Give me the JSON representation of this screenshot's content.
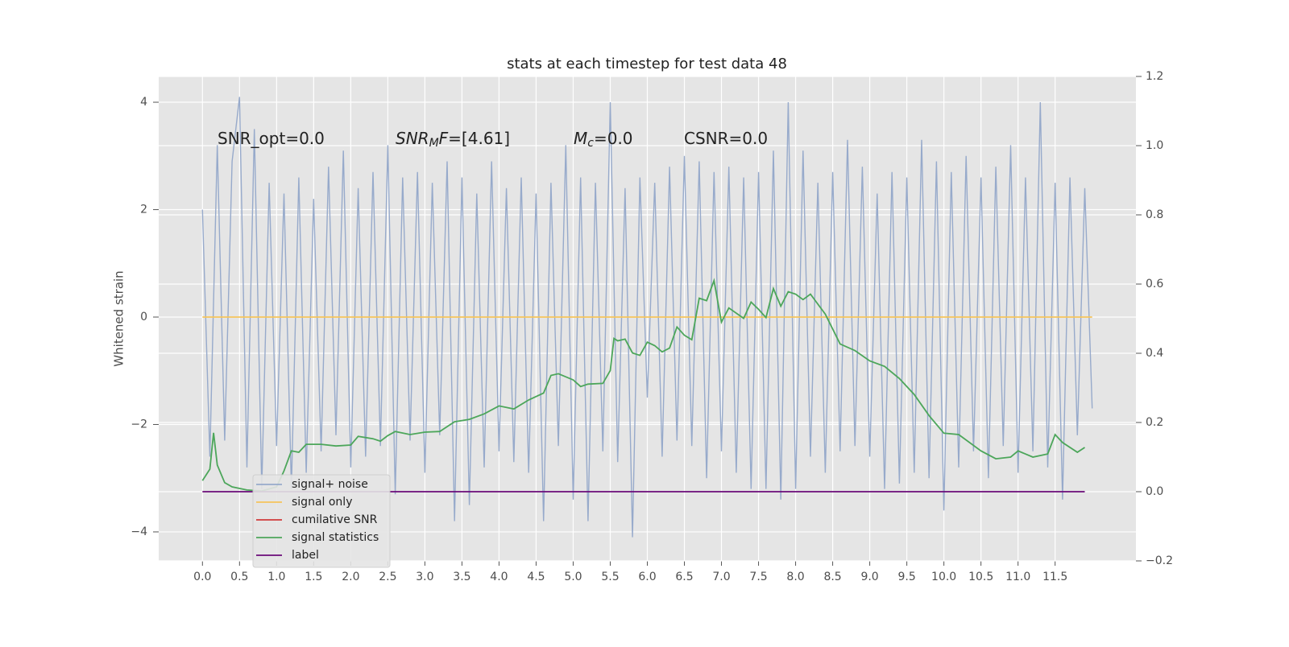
{
  "chart_data": {
    "type": "line",
    "title": "stats at each timestep for test data 48",
    "ylabel": "Whitened strain",
    "annotations": [
      {
        "parts": [
          {
            "text": "SNR_opt=0.0",
            "style": "normal"
          }
        ]
      },
      {
        "parts": [
          {
            "text": "SNR",
            "style": "italic"
          },
          {
            "text": "M",
            "style": "sub"
          },
          {
            "text": "F",
            "style": "italic"
          },
          {
            "text": "=[4.61]",
            "style": "normal"
          }
        ]
      },
      {
        "parts": [
          {
            "text": "M",
            "style": "italic"
          },
          {
            "text": "c",
            "style": "sub"
          },
          {
            "text": "=0.0",
            "style": "normal"
          }
        ]
      },
      {
        "parts": [
          {
            "text": "CSNR=0.0",
            "style": "normal"
          }
        ]
      }
    ],
    "xlim": [
      -0.59,
      12.59
    ],
    "ylim": [
      -4.54,
      4.48
    ],
    "y2lim": [
      -0.2,
      1.2
    ],
    "xticks": [
      {
        "value": 0,
        "label": "0.0"
      },
      {
        "value": 0.5,
        "label": "0.5"
      },
      {
        "value": 1,
        "label": "1.0"
      },
      {
        "value": 1.5,
        "label": "1.5"
      },
      {
        "value": 2,
        "label": "2.0"
      },
      {
        "value": 2.5,
        "label": "2.5"
      },
      {
        "value": 3,
        "label": "3.0"
      },
      {
        "value": 3.5,
        "label": "3.5"
      },
      {
        "value": 4,
        "label": "4.0"
      },
      {
        "value": 4.5,
        "label": "4.5"
      },
      {
        "value": 5,
        "label": "5.0"
      },
      {
        "value": 5.5,
        "label": "5.5"
      },
      {
        "value": 6,
        "label": "6.0"
      },
      {
        "value": 6.5,
        "label": "6.5"
      },
      {
        "value": 7,
        "label": "7.0"
      },
      {
        "value": 7.5,
        "label": "7.5"
      },
      {
        "value": 8,
        "label": "8.0"
      },
      {
        "value": 8.5,
        "label": "8.5"
      },
      {
        "value": 9,
        "label": "9.0"
      },
      {
        "value": 9.5,
        "label": "9.5"
      },
      {
        "value": 10,
        "label": "10.0"
      },
      {
        "value": 10.5,
        "label": "10.5"
      },
      {
        "value": 11,
        "label": "11.0"
      },
      {
        "value": 11.5,
        "label": "11.5"
      }
    ],
    "yticks": [
      {
        "value": -4,
        "label": "−4"
      },
      {
        "value": -2,
        "label": "−2"
      },
      0,
      2,
      4
    ],
    "y2ticks": [
      {
        "value": -0.2,
        "label": "−0.2"
      },
      {
        "value": 0,
        "label": "0.0"
      },
      {
        "value": 0.2,
        "label": "0.2"
      },
      {
        "value": 0.4,
        "label": "0.4"
      },
      {
        "value": 0.6,
        "label": "0.6"
      },
      {
        "value": 0.8,
        "label": "0.8"
      },
      {
        "value": 1.0,
        "label": "1.0"
      },
      {
        "value": 1.2,
        "label": "1.2"
      }
    ],
    "grid": true,
    "legend": "lower left",
    "series": [
      {
        "name": "signal+ noise",
        "color": "#97aacb",
        "axis": "y",
        "x": [
          0,
          0.1,
          0.2,
          0.3,
          0.4,
          0.5,
          0.6,
          0.7,
          0.8,
          0.9,
          1,
          1.1,
          1.2,
          1.3,
          1.4,
          1.5,
          1.6,
          1.7,
          1.8,
          1.9,
          2,
          2.1,
          2.2,
          2.3,
          2.4,
          2.5,
          2.6,
          2.7,
          2.8,
          2.9,
          3,
          3.1,
          3.2,
          3.3,
          3.4,
          3.5,
          3.6,
          3.7,
          3.8,
          3.9,
          4,
          4.1,
          4.2,
          4.3,
          4.4,
          4.5,
          4.6,
          4.7,
          4.8,
          4.9,
          5,
          5.1,
          5.2,
          5.3,
          5.4,
          5.5,
          5.6,
          5.7,
          5.8,
          5.9,
          6,
          6.1,
          6.2,
          6.3,
          6.4,
          6.5,
          6.6,
          6.7,
          6.8,
          6.9,
          7,
          7.1,
          7.2,
          7.3,
          7.4,
          7.5,
          7.6,
          7.7,
          7.8,
          7.9,
          8,
          8.1,
          8.2,
          8.3,
          8.4,
          8.5,
          8.6,
          8.7,
          8.8,
          8.9,
          9,
          9.1,
          9.2,
          9.3,
          9.4,
          9.5,
          9.6,
          9.7,
          9.8,
          9.9,
          10,
          10.1,
          10.2,
          10.3,
          10.4,
          10.5,
          10.6,
          10.7,
          10.8,
          10.9,
          11,
          11.1,
          11.2,
          11.3,
          11.4,
          11.5,
          11.6,
          11.7,
          11.8,
          11.9,
          12
        ],
        "values": [
          2.0,
          -2.6,
          3.2,
          -2.3,
          2.9,
          4.1,
          -2.8,
          3.5,
          -3.2,
          2.5,
          -2.4,
          2.3,
          -3.2,
          2.6,
          -2.9,
          2.2,
          -2.5,
          2.8,
          -2.2,
          3.1,
          -2.8,
          2.4,
          -2.6,
          2.7,
          -2.4,
          3.2,
          -3.3,
          2.6,
          -2.3,
          2.7,
          -2.9,
          2.5,
          -2.2,
          2.9,
          -3.8,
          2.6,
          -3.5,
          2.3,
          -2.8,
          2.9,
          -2.5,
          2.4,
          -2.7,
          2.6,
          -2.9,
          2.3,
          -3.8,
          2.5,
          -2.4,
          3.2,
          -3.4,
          2.6,
          -3.8,
          2.5,
          -2.5,
          4.0,
          -2.7,
          2.4,
          -4.1,
          2.6,
          -1.5,
          2.5,
          -2.6,
          2.8,
          -2.3,
          3.0,
          -2.4,
          2.9,
          -3.0,
          2.7,
          -2.5,
          2.8,
          -2.9,
          2.6,
          -3.2,
          2.7,
          -3.2,
          3.1,
          -3.4,
          4.0,
          -3.2,
          3.1,
          -2.6,
          2.5,
          -2.9,
          2.7,
          -2.5,
          3.3,
          -2.4,
          2.8,
          -2.6,
          2.3,
          -3.2,
          2.7,
          -3.1,
          2.6,
          -2.9,
          3.3,
          -3.0,
          2.9,
          -3.6,
          2.7,
          -2.8,
          3.0,
          -2.5,
          2.6,
          -3.0,
          2.8,
          -2.4,
          3.2,
          -2.9,
          2.6,
          -2.5,
          4.0,
          -2.8,
          2.5,
          -3.4,
          2.6,
          -2.2,
          2.4,
          -1.7
        ]
      },
      {
        "name": "signal only",
        "color": "#f5c45a",
        "axis": "y",
        "x": [
          0,
          12
        ],
        "values": [
          0,
          0
        ]
      },
      {
        "name": "cumilative SNR",
        "color": "#d03a3a",
        "axis": "y2",
        "x": [],
        "values": []
      },
      {
        "name": "signal statistics",
        "color": "#4ca65a",
        "axis": "y2",
        "x": [
          0,
          0.1,
          0.15,
          0.2,
          0.3,
          0.4,
          0.6,
          0.8,
          1.0,
          1.1,
          1.2,
          1.3,
          1.4,
          1.6,
          1.8,
          2.0,
          2.1,
          2.3,
          2.4,
          2.5,
          2.6,
          2.8,
          3.0,
          3.2,
          3.4,
          3.6,
          3.8,
          4.0,
          4.2,
          4.4,
          4.6,
          4.7,
          4.8,
          5.0,
          5.1,
          5.2,
          5.4,
          5.5,
          5.55,
          5.6,
          5.7,
          5.8,
          5.9,
          6.0,
          6.1,
          6.2,
          6.3,
          6.4,
          6.5,
          6.6,
          6.7,
          6.8,
          6.9,
          7.0,
          7.1,
          7.3,
          7.4,
          7.5,
          7.6,
          7.7,
          7.8,
          7.9,
          8.0,
          8.1,
          8.2,
          8.4,
          8.6,
          8.8,
          9.0,
          9.2,
          9.4,
          9.6,
          9.8,
          10.0,
          10.2,
          10.5,
          10.7,
          10.9,
          11.0,
          11.2,
          11.4,
          11.5,
          11.6,
          11.8,
          11.9
        ],
        "values": [
          0.032,
          0.065,
          0.17,
          0.077,
          0.026,
          0.014,
          0.005,
          0.002,
          0.014,
          0.06,
          0.118,
          0.114,
          0.137,
          0.137,
          0.132,
          0.135,
          0.16,
          0.153,
          0.146,
          0.162,
          0.174,
          0.165,
          0.172,
          0.174,
          0.202,
          0.209,
          0.225,
          0.248,
          0.239,
          0.265,
          0.285,
          0.336,
          0.341,
          0.323,
          0.304,
          0.311,
          0.313,
          0.35,
          0.443,
          0.436,
          0.441,
          0.401,
          0.394,
          0.432,
          0.422,
          0.404,
          0.415,
          0.476,
          0.452,
          0.439,
          0.559,
          0.552,
          0.61,
          0.49,
          0.531,
          0.501,
          0.548,
          0.527,
          0.503,
          0.587,
          0.536,
          0.578,
          0.571,
          0.555,
          0.571,
          0.513,
          0.427,
          0.408,
          0.378,
          0.362,
          0.327,
          0.281,
          0.22,
          0.169,
          0.165,
          0.118,
          0.095,
          0.1,
          0.118,
          0.1,
          0.109,
          0.165,
          0.142,
          0.114,
          0.128
        ]
      },
      {
        "name": "label",
        "color": "#6a0a78",
        "axis": "y2",
        "x": [
          0,
          11.9
        ],
        "values": [
          0,
          0
        ]
      }
    ]
  }
}
